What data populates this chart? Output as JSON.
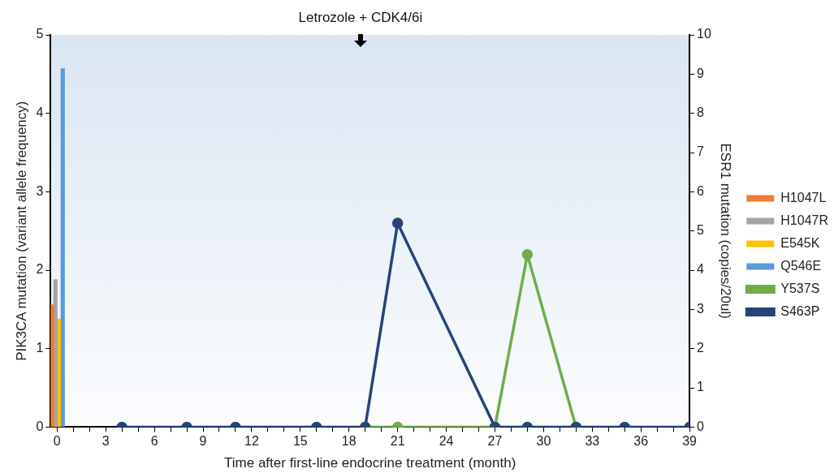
{
  "chart_data": {
    "type": "line",
    "xlabel": "Time after first-line endocrine treatment (month)",
    "ylabel": "PIK3CA mutation (variant allele frequency)",
    "y2label": "ESR1 mutation (copies/20ul)",
    "annotations": [
      "Letrozole + CDK4/6i"
    ],
    "xlim": [
      -0.4,
      39
    ],
    "xticks": [
      0,
      {
        "value": 1,
        "label": null
      },
      {
        "value": 2,
        "label": null
      },
      3,
      {
        "value": 4,
        "label": null
      },
      {
        "value": 5,
        "label": null
      },
      6,
      {
        "value": 7,
        "label": null
      },
      {
        "value": 8,
        "label": null
      },
      9,
      {
        "value": 10,
        "label": null
      },
      {
        "value": 11,
        "label": null
      },
      12,
      {
        "value": 13,
        "label": null
      },
      {
        "value": 14,
        "label": null
      },
      15,
      {
        "value": 16,
        "label": null
      },
      {
        "value": 17,
        "label": null
      },
      18,
      {
        "value": 19,
        "label": null
      },
      {
        "value": 20,
        "label": null
      },
      21,
      {
        "value": 22,
        "label": null
      },
      {
        "value": 23,
        "label": null
      },
      24,
      {
        "value": 25,
        "label": null
      },
      {
        "value": 26,
        "label": null
      },
      27,
      {
        "value": 28,
        "label": null
      },
      {
        "value": 29,
        "label": null
      },
      30,
      {
        "value": 31,
        "label": null
      },
      {
        "value": 32,
        "label": null
      },
      33,
      {
        "value": 34,
        "label": null
      },
      {
        "value": 35,
        "label": null
      },
      36,
      {
        "value": 37,
        "label": null
      },
      {
        "value": 38,
        "label": null
      },
      39
    ],
    "ylim": [
      0,
      5
    ],
    "yticks": [
      0,
      1,
      2,
      3,
      4,
      5
    ],
    "y2lim": [
      0,
      10
    ],
    "y2ticks": [
      0,
      1,
      2,
      3,
      4,
      5,
      6,
      7,
      8,
      9,
      10
    ],
    "grid": false,
    "legend": "right",
    "marker": "circle",
    "series": [
      {
        "name": "H1047L",
        "type": "bar",
        "color": "#ed7d31",
        "x": [
          -0.3
        ],
        "values": [
          1.56
        ]
      },
      {
        "name": "H1047R",
        "type": "bar",
        "color": "#a5a5a5",
        "x": [
          -0.1
        ],
        "values": [
          1.88
        ]
      },
      {
        "name": "E545K",
        "type": "bar",
        "color": "#ffc000",
        "x": [
          0.1
        ],
        "values": [
          1.38
        ]
      },
      {
        "name": "Q546E",
        "type": "bar",
        "color": "#5b9bd5",
        "x": [
          0.35
        ],
        "values": [
          4.57
        ]
      },
      {
        "name": "Y537S",
        "axis": "y2",
        "color": "#70ad47",
        "x": [
          19,
          21,
          27,
          29,
          32
        ],
        "values": [
          0,
          0,
          0,
          4.4,
          0
        ]
      },
      {
        "name": "S463P",
        "axis": "y2",
        "color": "#264478",
        "x": [
          4,
          8,
          11,
          16,
          19,
          21,
          27,
          29,
          32,
          35,
          39
        ],
        "values": [
          0,
          0,
          0,
          0,
          0,
          5.2,
          0,
          0,
          0,
          0,
          0
        ]
      }
    ]
  }
}
